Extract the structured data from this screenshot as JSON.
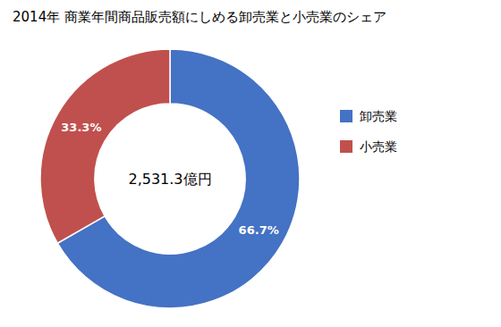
{
  "chart_data": {
    "type": "donut",
    "title": "2014年 商業年間商品販売額にしめる卸売業と小売業のシェア",
    "categories": [
      "卸売業",
      "小売業"
    ],
    "values": [
      66.7,
      33.3
    ],
    "value_labels": [
      "66.7%",
      "33.3%"
    ],
    "colors": [
      "#4472C4",
      "#C0504D"
    ],
    "data_labels": true,
    "legend": "right",
    "annotations": [
      "2,531.3億円"
    ]
  }
}
